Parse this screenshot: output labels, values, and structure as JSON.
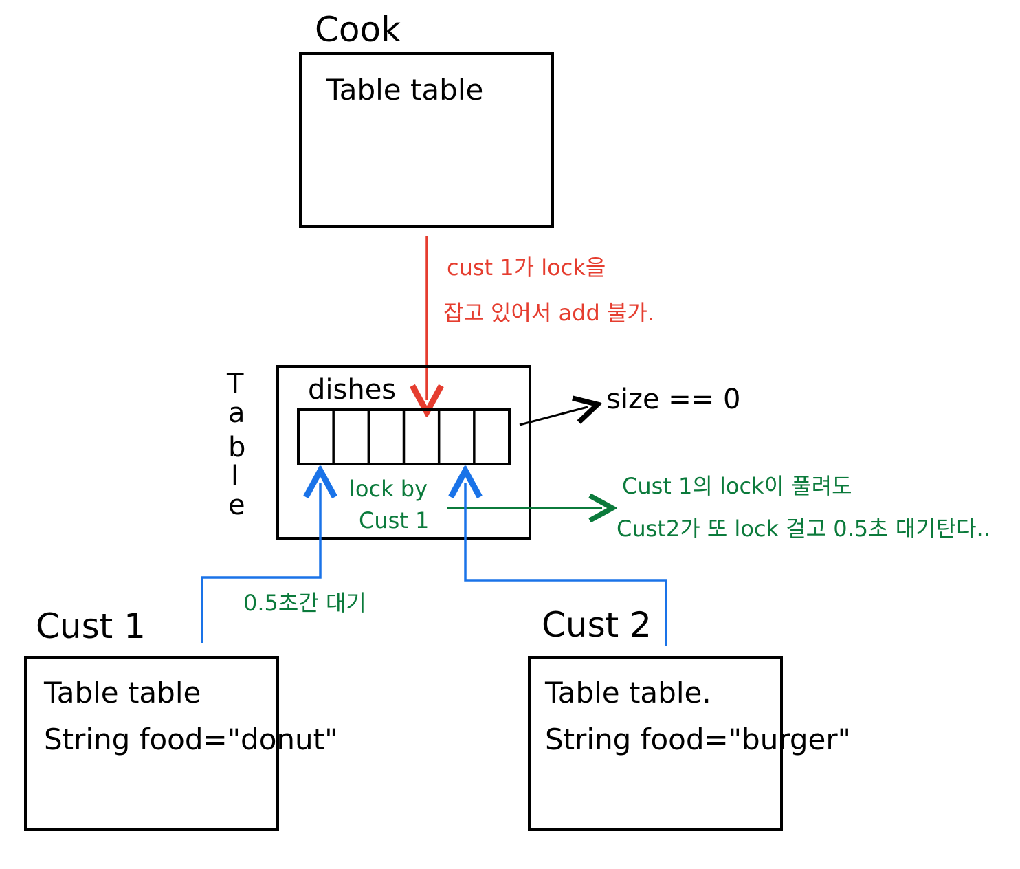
{
  "colors": {
    "stroke": "#000000",
    "red": "#e53d2f",
    "blue": "#1a73e8",
    "green": "#0b7a3b"
  },
  "cook": {
    "title": "Cook",
    "field": "Table table"
  },
  "table": {
    "title_letters": [
      "T",
      "a",
      "b",
      "l",
      "e"
    ],
    "dishes_label": "dishes",
    "slot_count": 6,
    "size_label": "size == 0",
    "lock_line1": "lock by",
    "lock_line2": "Cust 1"
  },
  "cust1": {
    "title": "Cust 1",
    "field1": "Table table",
    "field2": "String food=\"donut\""
  },
  "cust2": {
    "title": "Cust 2",
    "field1": "Table table.",
    "field2": "String food=\"burger\""
  },
  "annotations": {
    "red_line1": "cust 1가 lock을",
    "red_line2": "잡고 있어서 add 불가.",
    "green_wait": "0.5초간 대기",
    "green_line1": "Cust 1의 lock이 풀려도",
    "green_line2": "Cust2가 또 lock 걸고 0.5초 대기탄다.."
  }
}
